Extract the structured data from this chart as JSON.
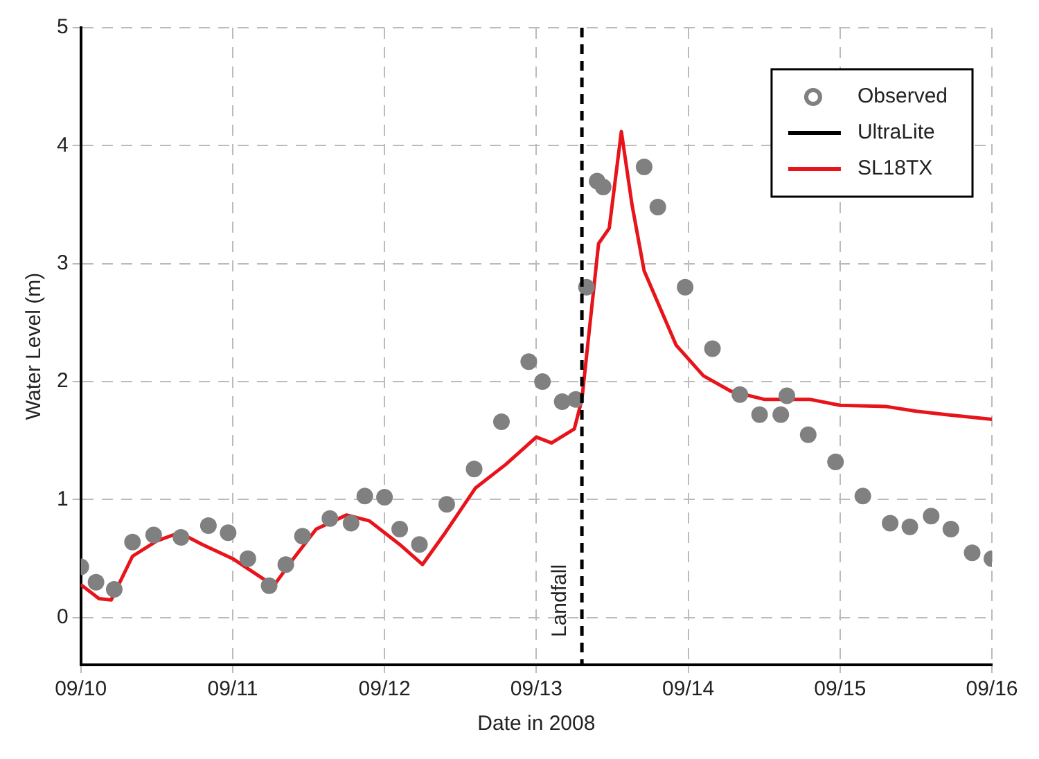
{
  "chart_data": {
    "type": "line",
    "xlabel": "Date in 2008",
    "ylabel": "Water Level (m)",
    "xlim": [
      "2008-09-10",
      "2008-09-16"
    ],
    "xticks": [
      {
        "value": "2008-09-10",
        "label": "09/10"
      },
      {
        "value": "2008-09-11",
        "label": "09/11"
      },
      {
        "value": "2008-09-12",
        "label": "09/12"
      },
      {
        "value": "2008-09-13",
        "label": "09/13"
      },
      {
        "value": "2008-09-14",
        "label": "09/14"
      },
      {
        "value": "2008-09-15",
        "label": "09/15"
      },
      {
        "value": "2008-09-16",
        "label": "09/16"
      }
    ],
    "ylim": [
      -0.4,
      5
    ],
    "yticks": [
      0,
      1,
      2,
      3,
      4,
      5
    ],
    "grid": true,
    "legend": "top right",
    "ref_lines": [
      {
        "axis": "x",
        "value": "2008-09-13T07:12",
        "label": "Landfall",
        "color": "#000000",
        "line_style": "dashed"
      }
    ],
    "series": [
      {
        "name": "Observed",
        "type": "scatter",
        "marker": "circle",
        "color": "#808080",
        "x": [
          "2008-09-10T00:00",
          "2008-09-10T02:24",
          "2008-09-10T05:17",
          "2008-09-10T08:10",
          "2008-09-10T11:31",
          "2008-09-10T15:50",
          "2008-09-10T20:10",
          "2008-09-10T23:17",
          "2008-09-11T02:24",
          "2008-09-11T05:46",
          "2008-09-11T08:24",
          "2008-09-11T11:02",
          "2008-09-11T15:22",
          "2008-09-11T18:43",
          "2008-09-11T20:53",
          "2008-09-12T00:00",
          "2008-09-12T02:24",
          "2008-09-12T05:31",
          "2008-09-12T09:50",
          "2008-09-12T14:10",
          "2008-09-12T18:29",
          "2008-09-12T22:48",
          "2008-09-13T00:58",
          "2008-09-13T04:05",
          "2008-09-13T06:14",
          "2008-09-13T07:55",
          "2008-09-13T09:36",
          "2008-09-13T10:34",
          "2008-09-13T13:12",
          "2008-09-13T17:02",
          "2008-09-13T19:12",
          "2008-09-13T23:31",
          "2008-09-14T03:50",
          "2008-09-14T08:10",
          "2008-09-14T11:17",
          "2008-09-14T14:38",
          "2008-09-14T15:36",
          "2008-09-14T18:58",
          "2008-09-14T23:17",
          "2008-09-15T03:36",
          "2008-09-15T07:55",
          "2008-09-15T11:02",
          "2008-09-15T14:24",
          "2008-09-15T17:31",
          "2008-09-15T20:53",
          "2008-09-16T00:00"
        ],
        "values": [
          0.43,
          0.3,
          0.24,
          0.64,
          0.7,
          0.68,
          0.78,
          0.72,
          0.5,
          0.27,
          0.45,
          0.69,
          0.84,
          0.8,
          1.03,
          1.02,
          0.75,
          0.62,
          0.96,
          1.26,
          1.66,
          2.17,
          2.0,
          1.83,
          1.85,
          2.8,
          3.7,
          3.65,
          null,
          3.82,
          3.48,
          2.8,
          2.28,
          1.89,
          1.72,
          1.72,
          1.88,
          1.55,
          1.32,
          1.03,
          0.8,
          0.77,
          0.86,
          0.75,
          0.55,
          0.5
        ]
      },
      {
        "name": "UltraLite",
        "color": "#000000"
      },
      {
        "name": "SL18TX",
        "color": "#e8141b",
        "x": [
          "2008-09-10T00:00",
          "2008-09-10T02:53",
          "2008-09-10T04:48",
          "2008-09-10T08:10",
          "2008-09-10T12:00",
          "2008-09-10T15:36",
          "2008-09-10T19:12",
          "2008-09-11T00:00",
          "2008-09-11T04:48",
          "2008-09-11T06:29",
          "2008-09-11T09:36",
          "2008-09-11T13:12",
          "2008-09-11T18:00",
          "2008-09-11T21:36",
          "2008-09-12T02:24",
          "2008-09-12T06:00",
          "2008-09-12T09:36",
          "2008-09-12T14:24",
          "2008-09-12T19:12",
          "2008-09-13T00:00",
          "2008-09-13T02:24",
          "2008-09-13T06:00",
          "2008-09-13T07:12",
          "2008-09-13T09:50",
          "2008-09-13T11:31",
          "2008-09-13T13:26",
          "2008-09-13T15:07",
          "2008-09-13T17:02",
          "2008-09-13T22:05",
          "2008-09-14T02:24",
          "2008-09-14T06:43",
          "2008-09-14T12:00",
          "2008-09-14T19:12",
          "2008-09-15T00:00",
          "2008-09-15T07:12",
          "2008-09-15T12:00",
          "2008-09-15T16:48",
          "2008-09-16T00:00"
        ],
        "values": [
          0.28,
          0.16,
          0.15,
          0.52,
          0.65,
          0.72,
          0.62,
          0.5,
          0.33,
          0.27,
          0.5,
          0.75,
          0.87,
          0.82,
          0.62,
          0.45,
          0.72,
          1.1,
          1.3,
          1.53,
          1.48,
          1.6,
          1.85,
          3.17,
          3.3,
          4.12,
          3.5,
          2.94,
          2.31,
          2.05,
          1.92,
          1.85,
          1.85,
          1.8,
          1.79,
          1.75,
          1.72,
          1.68
        ]
      }
    ]
  }
}
